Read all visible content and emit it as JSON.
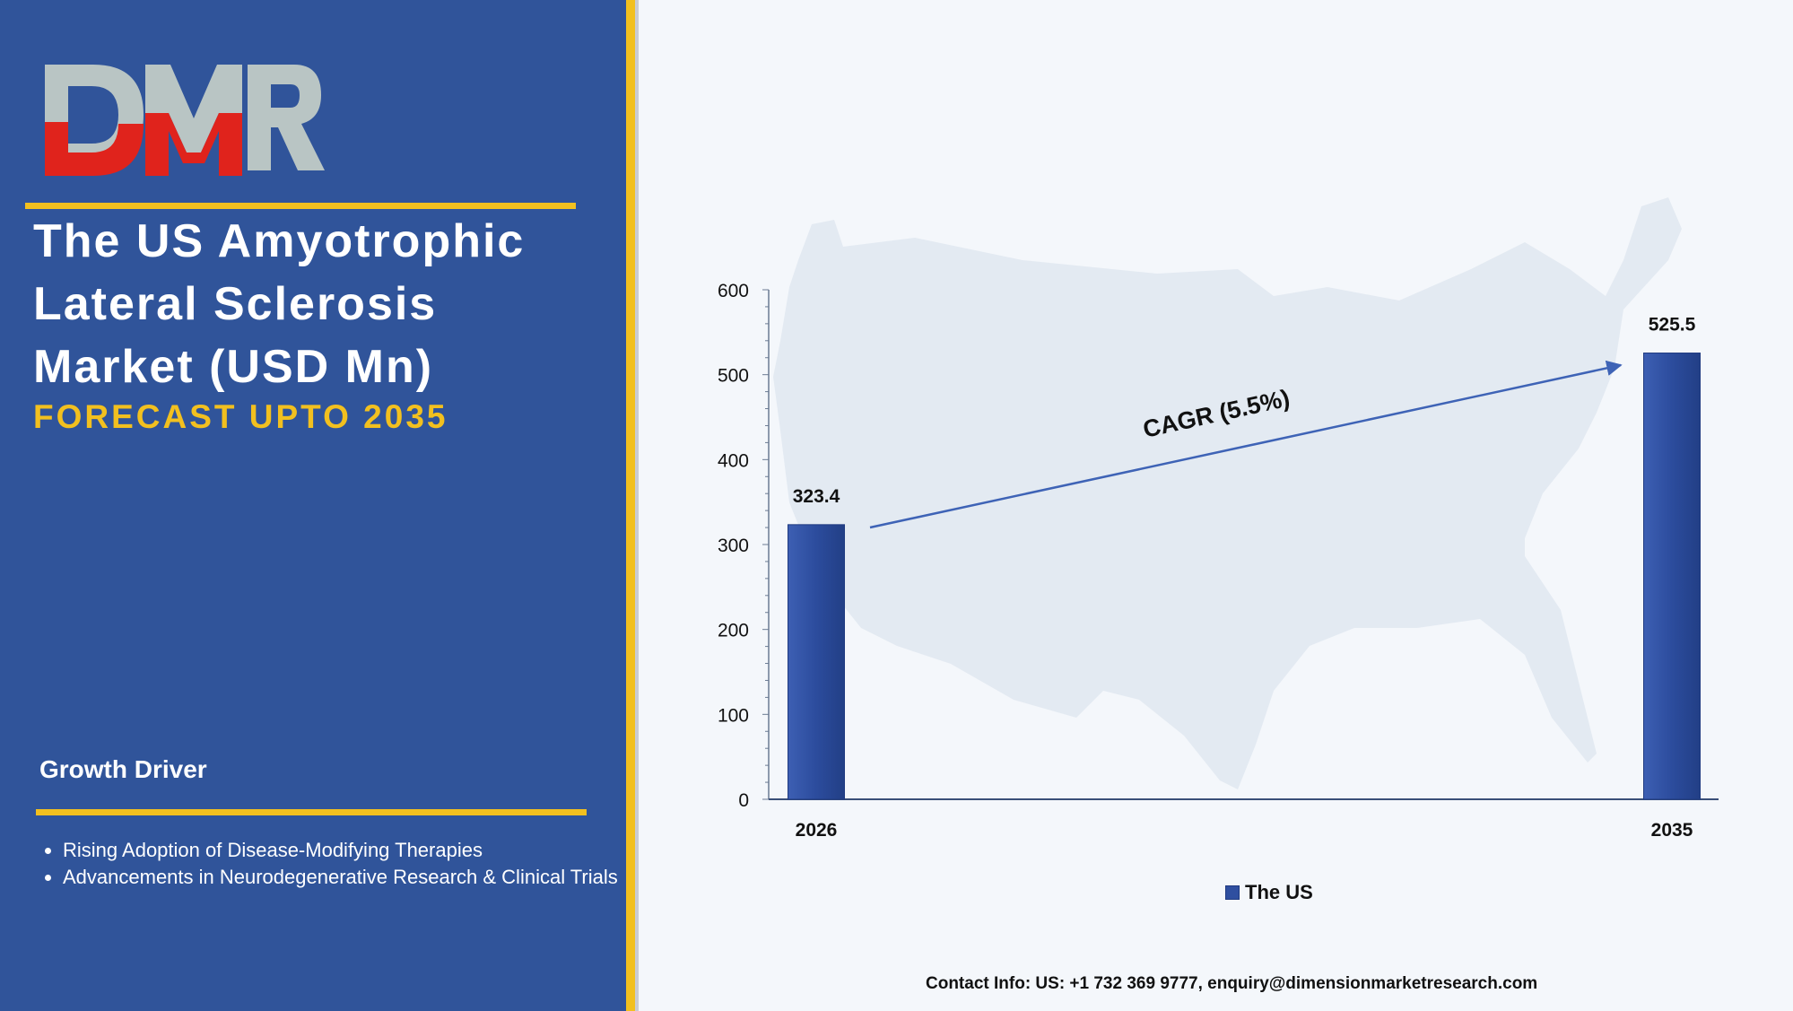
{
  "brand": {
    "logo_text": "DMR",
    "colors": {
      "logo_red": "#e0231c",
      "logo_gray": "#b9c5c4"
    }
  },
  "sidebar": {
    "title_lines": [
      "The US Amyotrophic",
      "Lateral Sclerosis",
      "Market (USD Mn)"
    ],
    "subtitle": "FORECAST UPTO 2035",
    "growth_driver_heading": "Growth Driver",
    "growth_drivers": [
      "Rising Adoption of Disease-Modifying Therapies",
      "Advancements in Neurodegenerative Research & Clinical Trials"
    ],
    "colors": {
      "panel": "#30549a",
      "accent": "#f2c01f"
    }
  },
  "chart_data": {
    "type": "bar",
    "categories": [
      "2026",
      "2035"
    ],
    "series": [
      {
        "name": "The US",
        "values": [
          323.4,
          525.5
        ]
      }
    ],
    "data_labels": [
      "323.4",
      "525.5"
    ],
    "ylim": [
      0,
      600
    ],
    "yticks": [
      0,
      100,
      200,
      300,
      400,
      500,
      600
    ],
    "annotation": "CAGR (5.5%)",
    "legend": "bottom",
    "grid": false,
    "bar_color": "#2f4fa0"
  },
  "footer": {
    "contact": "Contact Info: US: +1 732 369 9777, enquiry@dimensionmarketresearch.com"
  }
}
